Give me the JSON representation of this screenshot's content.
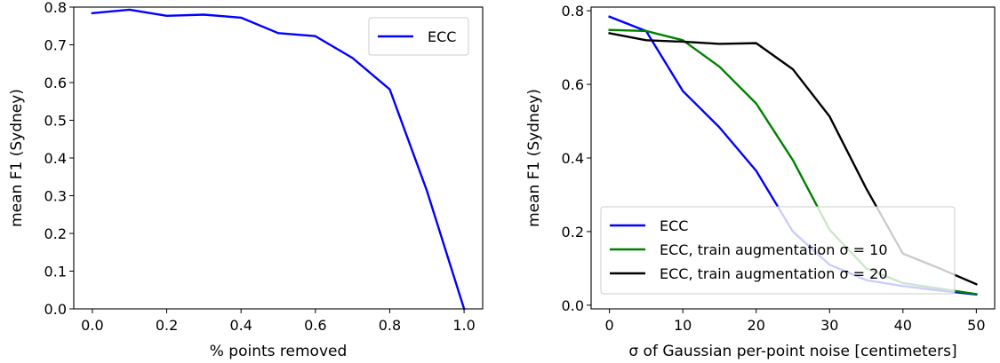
{
  "chart_data": [
    {
      "type": "line",
      "xlabel": "% points removed",
      "ylabel": "mean F1 (Sydney)",
      "xlim": [
        -0.05,
        1.05
      ],
      "ylim": [
        0.0,
        0.8
      ],
      "xticks": [
        0.0,
        0.2,
        0.4,
        0.6,
        0.8,
        1.0
      ],
      "xtick_labels": [
        "0.0",
        "0.2",
        "0.4",
        "0.6",
        "0.8",
        "1.0"
      ],
      "yticks": [
        0.0,
        0.1,
        0.2,
        0.3,
        0.4,
        0.5,
        0.6,
        0.7,
        0.8
      ],
      "ytick_labels": [
        "0.0",
        "0.1",
        "0.2",
        "0.3",
        "0.4",
        "0.5",
        "0.6",
        "0.7",
        "0.8"
      ],
      "legend_position": "top-right",
      "grid": false,
      "series": [
        {
          "name": "ECC",
          "color": "#0000ff",
          "x": [
            0.0,
            0.1,
            0.2,
            0.3,
            0.4,
            0.5,
            0.6,
            0.7,
            0.8,
            0.9,
            1.0
          ],
          "y": [
            0.784,
            0.793,
            0.777,
            0.78,
            0.772,
            0.731,
            0.723,
            0.665,
            0.582,
            0.313,
            0.0
          ]
        }
      ]
    },
    {
      "type": "line",
      "xlabel": "σ of Gaussian per-point noise [centimeters]",
      "ylabel": "mean F1 (Sydney)",
      "xlim": [
        -2.5,
        52.5
      ],
      "ylim": [
        -0.01,
        0.81
      ],
      "xticks": [
        0,
        10,
        20,
        30,
        40,
        50
      ],
      "xtick_labels": [
        "0",
        "10",
        "20",
        "30",
        "40",
        "50"
      ],
      "yticks": [
        0.0,
        0.2,
        0.4,
        0.6,
        0.8
      ],
      "ytick_labels": [
        "0.0",
        "0.2",
        "0.4",
        "0.6",
        "0.8"
      ],
      "legend_position": "lower-left",
      "grid": false,
      "series": [
        {
          "name": "ECC",
          "color": "#0000ff",
          "x": [
            0,
            5,
            10,
            15,
            20,
            25,
            30,
            35,
            40,
            45,
            50
          ],
          "y": [
            0.784,
            0.745,
            0.582,
            0.483,
            0.365,
            0.2,
            0.11,
            0.068,
            0.052,
            0.04,
            0.029
          ]
        },
        {
          "name": "ECC, train augmentation σ = 10",
          "color": "#008000",
          "x": [
            0,
            5,
            10,
            15,
            20,
            25,
            30,
            35,
            40,
            45,
            50
          ],
          "y": [
            0.748,
            0.745,
            0.72,
            0.648,
            0.548,
            0.394,
            0.205,
            0.1,
            0.06,
            0.045,
            0.03
          ]
        },
        {
          "name": "ECC, train augmentation σ = 20",
          "color": "#000000",
          "x": [
            0,
            5,
            10,
            15,
            20,
            25,
            30,
            35,
            40,
            45,
            50
          ],
          "y": [
            0.739,
            0.72,
            0.716,
            0.71,
            0.712,
            0.641,
            0.513,
            0.317,
            0.14,
            0.1,
            0.057
          ]
        }
      ]
    }
  ]
}
